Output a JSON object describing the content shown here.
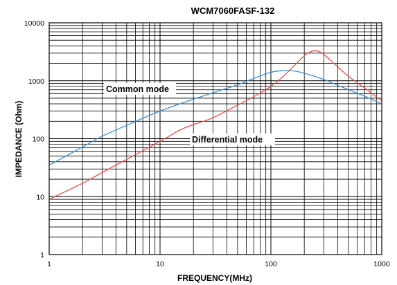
{
  "chart_data": {
    "type": "line",
    "title": "WCM7060FASF-132",
    "xlabel": "FREQUENCY(MHz)",
    "ylabel": "IMPEDANCE (Ohm)",
    "x_scale": "log",
    "y_scale": "log",
    "xlim": [
      1,
      1000
    ],
    "ylim": [
      1,
      10000
    ],
    "grid": true,
    "x_ticks": [
      {
        "value": 1,
        "label": "1"
      },
      {
        "value": 10,
        "label": "10"
      },
      {
        "value": 100,
        "label": "100"
      },
      {
        "value": 1000,
        "label": "1000"
      }
    ],
    "y_ticks": [
      {
        "value": 1,
        "label": "1"
      },
      {
        "value": 10,
        "label": "10"
      },
      {
        "value": 100,
        "label": "100"
      },
      {
        "value": 1000,
        "label": "1000"
      },
      {
        "value": 10000,
        "label": "10000"
      }
    ],
    "annotations": [
      {
        "text": "Common mode",
        "series": "Common mode"
      },
      {
        "text": "Differential mode",
        "series": "Differential mode"
      }
    ],
    "series": [
      {
        "name": "Common mode",
        "color": "#3d8fd1",
        "points": [
          [
            1,
            35
          ],
          [
            2,
            72
          ],
          [
            3,
            110
          ],
          [
            5,
            170
          ],
          [
            10,
            300
          ],
          [
            20,
            480
          ],
          [
            30,
            620
          ],
          [
            50,
            850
          ],
          [
            70,
            1100
          ],
          [
            100,
            1400
          ],
          [
            130,
            1500
          ],
          [
            160,
            1480
          ],
          [
            200,
            1350
          ],
          [
            300,
            1050
          ],
          [
            500,
            700
          ],
          [
            700,
            540
          ],
          [
            1000,
            400
          ]
        ]
      },
      {
        "name": "Differential mode",
        "color": "#f04a4a",
        "points": [
          [
            1,
            9
          ],
          [
            2,
            17
          ],
          [
            3,
            26
          ],
          [
            5,
            44
          ],
          [
            10,
            90
          ],
          [
            15,
            140
          ],
          [
            20,
            175
          ],
          [
            30,
            230
          ],
          [
            50,
            380
          ],
          [
            70,
            530
          ],
          [
            100,
            800
          ],
          [
            130,
            1200
          ],
          [
            170,
            2000
          ],
          [
            210,
            2900
          ],
          [
            250,
            3300
          ],
          [
            290,
            3000
          ],
          [
            350,
            2200
          ],
          [
            500,
            1200
          ],
          [
            700,
            750
          ],
          [
            1000,
            450
          ]
        ]
      }
    ]
  }
}
